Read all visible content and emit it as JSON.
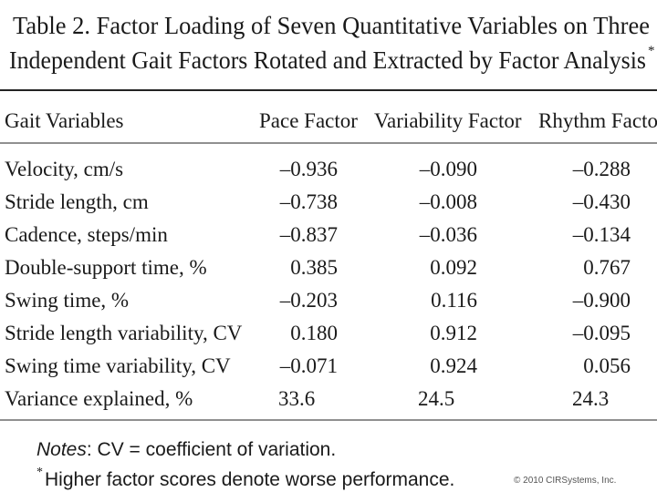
{
  "title": {
    "lines": [
      "Table 2.  Factor Loading of Seven Quantitative Variables on Three",
      "Independent Gait Factors Rotated and Extracted by Factor Analysis"
    ],
    "marker": "*"
  },
  "table": {
    "header": [
      "Gait Variables",
      "Pace Factor",
      "Variability Factor",
      "Rhythm Facto"
    ],
    "rows": [
      [
        "Velocity, cm/s",
        "–0.936",
        "–0.090",
        "–0.288"
      ],
      [
        "Stride length, cm",
        "–0.738",
        "–0.008",
        "–0.430"
      ],
      [
        "Cadence, steps/min",
        "–0.837",
        "–0.036",
        "–0.134"
      ],
      [
        "Double-support time, %",
        "0.385",
        "0.092",
        "0.767"
      ],
      [
        "Swing time, %",
        "–0.203",
        "0.116",
        "–0.900"
      ],
      [
        "Stride length variability, CV",
        "0.180",
        "0.912",
        "–0.095"
      ],
      [
        "Swing time variability, CV",
        "–0.071",
        "0.924",
        "0.056"
      ],
      [
        "Variance explained, %",
        "33.6",
        "24.5",
        "24.3"
      ]
    ]
  },
  "notes": {
    "label": "Notes",
    "text": ": CV = coefficient of variation."
  },
  "footnote": {
    "marker": "*",
    "text": "Higher factor scores denote worse performance."
  },
  "copyright": "© 2010 CIRSystems, Inc."
}
